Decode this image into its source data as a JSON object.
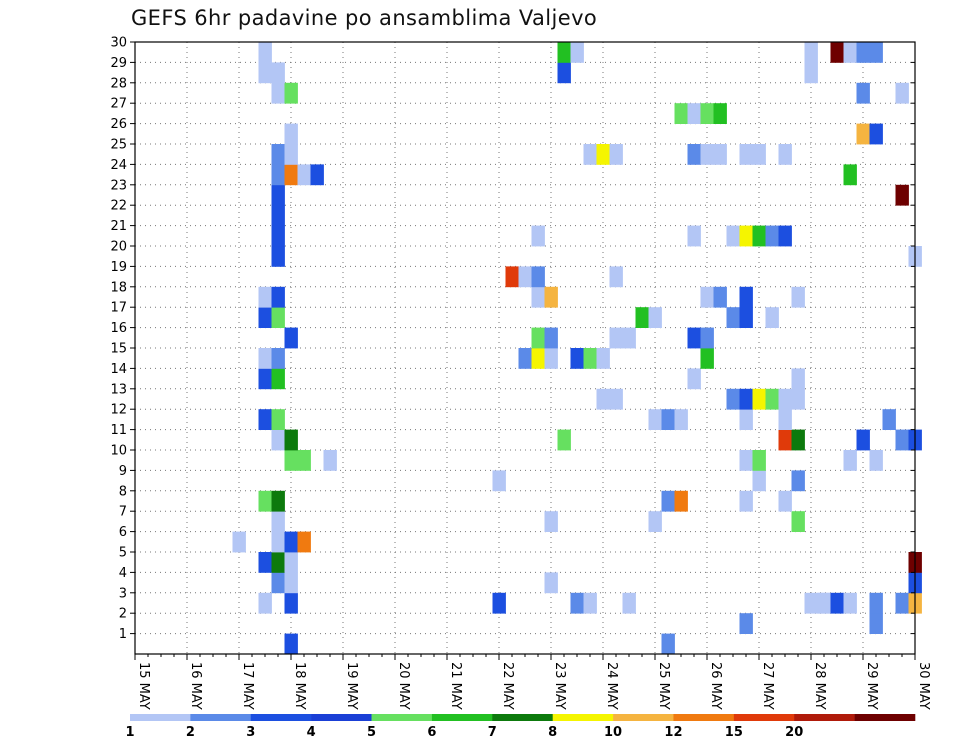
{
  "chart_data": {
    "type": "heatmap",
    "title": "GEFS 6hr padavine po ansamblima Valjevo",
    "xlabel": "",
    "ylabel": "",
    "x_ticks": [
      "15 MAY",
      "16 MAY",
      "17 MAY",
      "18 MAY",
      "19 MAY",
      "20 MAY",
      "21 MAY",
      "22 MAY",
      "23 MAY",
      "24 MAY",
      "25 MAY",
      "26 MAY",
      "27 MAY",
      "28 MAY",
      "29 MAY",
      "30 MAY"
    ],
    "y_ticks": [
      1,
      2,
      3,
      4,
      5,
      6,
      7,
      8,
      9,
      10,
      11,
      12,
      13,
      14,
      15,
      16,
      17,
      18,
      19,
      20,
      21,
      22,
      23,
      24,
      25,
      26,
      27,
      28,
      29,
      30
    ],
    "x_range": [
      "15 MAY 00Z",
      "30 MAY 00Z"
    ],
    "y_range": [
      0,
      30
    ],
    "time_step_hours": 6,
    "grid": true,
    "colorbar": {
      "labels": [
        "1",
        "2",
        "3",
        "4",
        "5",
        "6",
        "7",
        "8",
        "10",
        "12",
        "15",
        "20"
      ],
      "colors": [
        "#b3c6f5",
        "#5b8ae8",
        "#1c4fe0",
        "#1a3fd6",
        "#66e060",
        "#22c022",
        "#0d7a0d",
        "#f5f500",
        "#f5b440",
        "#f07a10",
        "#e03a0a",
        "#b01a0a",
        "#6e0000"
      ]
    },
    "cells": [
      {
        "m": 0,
        "t": "18 00Z",
        "l": 3
      },
      {
        "m": 0,
        "t": "25 06Z",
        "l": 2
      },
      {
        "m": 1,
        "t": "26 18Z",
        "l": 2
      },
      {
        "m": 1,
        "t": "29 06Z",
        "l": 2
      },
      {
        "m": 2,
        "t": "17 12Z",
        "l": 1
      },
      {
        "m": 2,
        "t": "18 00Z",
        "l": 3
      },
      {
        "m": 2,
        "t": "22 00Z",
        "l": 3
      },
      {
        "m": 2,
        "t": "23 12Z",
        "l": 2
      },
      {
        "m": 2,
        "t": "23 18Z",
        "l": 1
      },
      {
        "m": 2,
        "t": "24 12Z",
        "l": 1
      },
      {
        "m": 2,
        "t": "28 00Z",
        "l": 1
      },
      {
        "m": 2,
        "t": "28 06Z",
        "l": 1
      },
      {
        "m": 2,
        "t": "28 06Z",
        "l": 1
      },
      {
        "m": 2,
        "t": "28 12Z",
        "l": 3
      },
      {
        "m": 2,
        "t": "28 18Z",
        "l": 1
      },
      {
        "m": 2,
        "t": "29 06Z",
        "l": 2
      },
      {
        "m": 2,
        "t": "29 18Z",
        "l": 2
      },
      {
        "m": 2,
        "t": "30 00Z",
        "l": 10
      },
      {
        "m": 3,
        "t": "17 18Z",
        "l": 2
      },
      {
        "m": 3,
        "t": "18 00Z",
        "l": 1
      },
      {
        "m": 3,
        "t": "23 00Z",
        "l": 1
      },
      {
        "m": 3,
        "t": "30 00Z",
        "l": 3
      },
      {
        "m": 4,
        "t": "17 12Z",
        "l": 3
      },
      {
        "m": 4,
        "t": "17 18Z",
        "l": 7
      },
      {
        "m": 4,
        "t": "18 00Z",
        "l": 1
      },
      {
        "m": 4,
        "t": "30 00Z",
        "l": 20
      },
      {
        "m": 5,
        "t": "17 00Z",
        "l": 1
      },
      {
        "m": 5,
        "t": "17 18Z",
        "l": 1
      },
      {
        "m": 5,
        "t": "18 00Z",
        "l": 3
      },
      {
        "m": 5,
        "t": "18 06Z",
        "l": 12
      },
      {
        "m": 6,
        "t": "17 18Z",
        "l": 1
      },
      {
        "m": 6,
        "t": "23 00Z",
        "l": 1
      },
      {
        "m": 6,
        "t": "25 00Z",
        "l": 1
      },
      {
        "m": 6,
        "t": "27 18Z",
        "l": 5
      },
      {
        "m": 7,
        "t": "17 12Z",
        "l": 5
      },
      {
        "m": 7,
        "t": "17 18Z",
        "l": 7
      },
      {
        "m": 7,
        "t": "25 06Z",
        "l": 2
      },
      {
        "m": 7,
        "t": "25 12Z",
        "l": 12
      },
      {
        "m": 7,
        "t": "26 18Z",
        "l": 1
      },
      {
        "m": 7,
        "t": "27 12Z",
        "l": 1
      },
      {
        "m": 8,
        "t": "22 00Z",
        "l": 1
      },
      {
        "m": 8,
        "t": "27 00Z",
        "l": 1
      },
      {
        "m": 8,
        "t": "27 18Z",
        "l": 2
      },
      {
        "m": 9,
        "t": "18 00Z",
        "l": 5
      },
      {
        "m": 9,
        "t": "18 06Z",
        "l": 5
      },
      {
        "m": 9,
        "t": "18 18Z",
        "l": 1
      },
      {
        "m": 9,
        "t": "26 18Z",
        "l": 1
      },
      {
        "m": 9,
        "t": "27 00Z",
        "l": 5
      },
      {
        "m": 9,
        "t": "28 18Z",
        "l": 1
      },
      {
        "m": 9,
        "t": "29 06Z",
        "l": 1
      },
      {
        "m": 10,
        "t": "17 18Z",
        "l": 1
      },
      {
        "m": 10,
        "t": "18 00Z",
        "l": 7
      },
      {
        "m": 10,
        "t": "23 06Z",
        "l": 5
      },
      {
        "m": 10,
        "t": "27 12Z",
        "l": 15
      },
      {
        "m": 10,
        "t": "27 18Z",
        "l": 7
      },
      {
        "m": 10,
        "t": "29 00Z",
        "l": 3
      },
      {
        "m": 10,
        "t": "29 18Z",
        "l": 2
      },
      {
        "m": 10,
        "t": "30 00Z",
        "l": 3
      },
      {
        "m": 11,
        "t": "17 12Z",
        "l": 3
      },
      {
        "m": 11,
        "t": "17 18Z",
        "l": 5
      },
      {
        "m": 11,
        "t": "25 00Z",
        "l": 1
      },
      {
        "m": 11,
        "t": "25 06Z",
        "l": 2
      },
      {
        "m": 11,
        "t": "25 12Z",
        "l": 1
      },
      {
        "m": 11,
        "t": "26 18Z",
        "l": 1
      },
      {
        "m": 11,
        "t": "27 12Z",
        "l": 1
      },
      {
        "m": 11,
        "t": "29 12Z",
        "l": 2
      },
      {
        "m": 12,
        "t": "24 00Z",
        "l": 1
      },
      {
        "m": 12,
        "t": "24 06Z",
        "l": 1
      },
      {
        "m": 12,
        "t": "26 12Z",
        "l": 2
      },
      {
        "m": 12,
        "t": "26 18Z",
        "l": 3
      },
      {
        "m": 12,
        "t": "27 00Z",
        "l": 8
      },
      {
        "m": 12,
        "t": "27 06Z",
        "l": 5
      },
      {
        "m": 12,
        "t": "27 12Z",
        "l": 1
      },
      {
        "m": 12,
        "t": "27 18Z",
        "l": 1
      },
      {
        "m": 13,
        "t": "17 12Z",
        "l": 3
      },
      {
        "m": 13,
        "t": "17 18Z",
        "l": 6
      },
      {
        "m": 13,
        "t": "25 18Z",
        "l": 1
      },
      {
        "m": 13,
        "t": "27 18Z",
        "l": 1
      },
      {
        "m": 14,
        "t": "17 12Z",
        "l": 1
      },
      {
        "m": 14,
        "t": "17 18Z",
        "l": 2
      },
      {
        "m": 14,
        "t": "22 12Z",
        "l": 2
      },
      {
        "m": 14,
        "t": "22 18Z",
        "l": 8
      },
      {
        "m": 14,
        "t": "23 00Z",
        "l": 1
      },
      {
        "m": 14,
        "t": "23 12Z",
        "l": 3
      },
      {
        "m": 14,
        "t": "23 18Z",
        "l": 5
      },
      {
        "m": 14,
        "t": "24 00Z",
        "l": 1
      },
      {
        "m": 14,
        "t": "26 00Z",
        "l": 6
      },
      {
        "m": 15,
        "t": "18 00Z",
        "l": 3
      },
      {
        "m": 15,
        "t": "22 18Z",
        "l": 5
      },
      {
        "m": 15,
        "t": "23 00Z",
        "l": 2
      },
      {
        "m": 15,
        "t": "24 06Z",
        "l": 1
      },
      {
        "m": 15,
        "t": "24 12Z",
        "l": 1
      },
      {
        "m": 15,
        "t": "25 18Z",
        "l": 3
      },
      {
        "m": 15,
        "t": "26 00Z",
        "l": 2
      },
      {
        "m": 16,
        "t": "17 12Z",
        "l": 3
      },
      {
        "m": 16,
        "t": "17 18Z",
        "l": 5
      },
      {
        "m": 16,
        "t": "24 18Z",
        "l": 6
      },
      {
        "m": 16,
        "t": "25 00Z",
        "l": 1
      },
      {
        "m": 16,
        "t": "26 12Z",
        "l": 2
      },
      {
        "m": 16,
        "t": "26 18Z",
        "l": 3
      },
      {
        "m": 16,
        "t": "27 06Z",
        "l": 1
      },
      {
        "m": 17,
        "t": "17 12Z",
        "l": 1
      },
      {
        "m": 17,
        "t": "17 18Z",
        "l": 3
      },
      {
        "m": 17,
        "t": "22 18Z",
        "l": 1
      },
      {
        "m": 17,
        "t": "23 00Z",
        "l": 10
      },
      {
        "m": 17,
        "t": "26 00Z",
        "l": 1
      },
      {
        "m": 17,
        "t": "26 06Z",
        "l": 2
      },
      {
        "m": 17,
        "t": "26 18Z",
        "l": 3
      },
      {
        "m": 17,
        "t": "27 18Z",
        "l": 1
      },
      {
        "m": 18,
        "t": "22 06Z",
        "l": 15
      },
      {
        "m": 18,
        "t": "22 12Z",
        "l": 1
      },
      {
        "m": 18,
        "t": "22 18Z",
        "l": 2
      },
      {
        "m": 18,
        "t": "24 06Z",
        "l": 1
      },
      {
        "m": 19,
        "t": "17 18Z",
        "l": 3
      },
      {
        "m": 19,
        "t": "30 00Z",
        "l": 1
      },
      {
        "m": 20,
        "t": "17 18Z",
        "l": 3
      },
      {
        "m": 20,
        "t": "22 18Z",
        "l": 1
      },
      {
        "m": 20,
        "t": "25 18Z",
        "l": 1
      },
      {
        "m": 20,
        "t": "26 12Z",
        "l": 1
      },
      {
        "m": 20,
        "t": "26 18Z",
        "l": 8
      },
      {
        "m": 20,
        "t": "27 00Z",
        "l": 6
      },
      {
        "m": 20,
        "t": "27 06Z",
        "l": 2
      },
      {
        "m": 20,
        "t": "27 12Z",
        "l": 3
      },
      {
        "m": 21,
        "t": "17 18Z",
        "l": 3
      },
      {
        "m": 22,
        "t": "17 18Z",
        "l": 3
      },
      {
        "m": 22,
        "t": "29 18Z",
        "l": 20
      },
      {
        "m": 23,
        "t": "17 18Z",
        "l": 2
      },
      {
        "m": 23,
        "t": "18 00Z",
        "l": 12
      },
      {
        "m": 23,
        "t": "18 06Z",
        "l": 1
      },
      {
        "m": 23,
        "t": "18 12Z",
        "l": 3
      },
      {
        "m": 23,
        "t": "28 18Z",
        "l": 6
      },
      {
        "m": 24,
        "t": "17 18Z",
        "l": 2
      },
      {
        "m": 24,
        "t": "18 00Z",
        "l": 1
      },
      {
        "m": 24,
        "t": "23 18Z",
        "l": 1
      },
      {
        "m": 24,
        "t": "24 00Z",
        "l": 8
      },
      {
        "m": 24,
        "t": "24 06Z",
        "l": 1
      },
      {
        "m": 24,
        "t": "25 18Z",
        "l": 2
      },
      {
        "m": 24,
        "t": "26 00Z",
        "l": 1
      },
      {
        "m": 24,
        "t": "26 06Z",
        "l": 1
      },
      {
        "m": 24,
        "t": "26 18Z",
        "l": 1
      },
      {
        "m": 24,
        "t": "27 00Z",
        "l": 1
      },
      {
        "m": 24,
        "t": "27 12Z",
        "l": 1
      },
      {
        "m": 25,
        "t": "18 00Z",
        "l": 1
      },
      {
        "m": 25,
        "t": "29 00Z",
        "l": 10
      },
      {
        "m": 25,
        "t": "29 06Z",
        "l": 3
      },
      {
        "m": 26,
        "t": "25 12Z",
        "l": 5
      },
      {
        "m": 26,
        "t": "25 18Z",
        "l": 1
      },
      {
        "m": 26,
        "t": "26 00Z",
        "l": 5
      },
      {
        "m": 26,
        "t": "26 06Z",
        "l": 6
      },
      {
        "m": 27,
        "t": "17 18Z",
        "l": 1
      },
      {
        "m": 27,
        "t": "18 00Z",
        "l": 5
      },
      {
        "m": 27,
        "t": "29 00Z",
        "l": 2
      },
      {
        "m": 27,
        "t": "29 18Z",
        "l": 1
      },
      {
        "m": 28,
        "t": "17 12Z",
        "l": 1
      },
      {
        "m": 28,
        "t": "17 18Z",
        "l": 1
      },
      {
        "m": 28,
        "t": "23 06Z",
        "l": 3
      },
      {
        "m": 28,
        "t": "28 00Z",
        "l": 1
      },
      {
        "m": 29,
        "t": "17 12Z",
        "l": 1
      },
      {
        "m": 29,
        "t": "23 06Z",
        "l": 6
      },
      {
        "m": 29,
        "t": "23 12Z",
        "l": 1
      },
      {
        "m": 29,
        "t": "28 00Z",
        "l": 1
      },
      {
        "m": 29,
        "t": "28 12Z",
        "l": 20
      },
      {
        "m": 29,
        "t": "28 18Z",
        "l": 1
      },
      {
        "m": 29,
        "t": "29 00Z",
        "l": 2
      },
      {
        "m": 29,
        "t": "29 06Z",
        "l": 2
      }
    ]
  }
}
